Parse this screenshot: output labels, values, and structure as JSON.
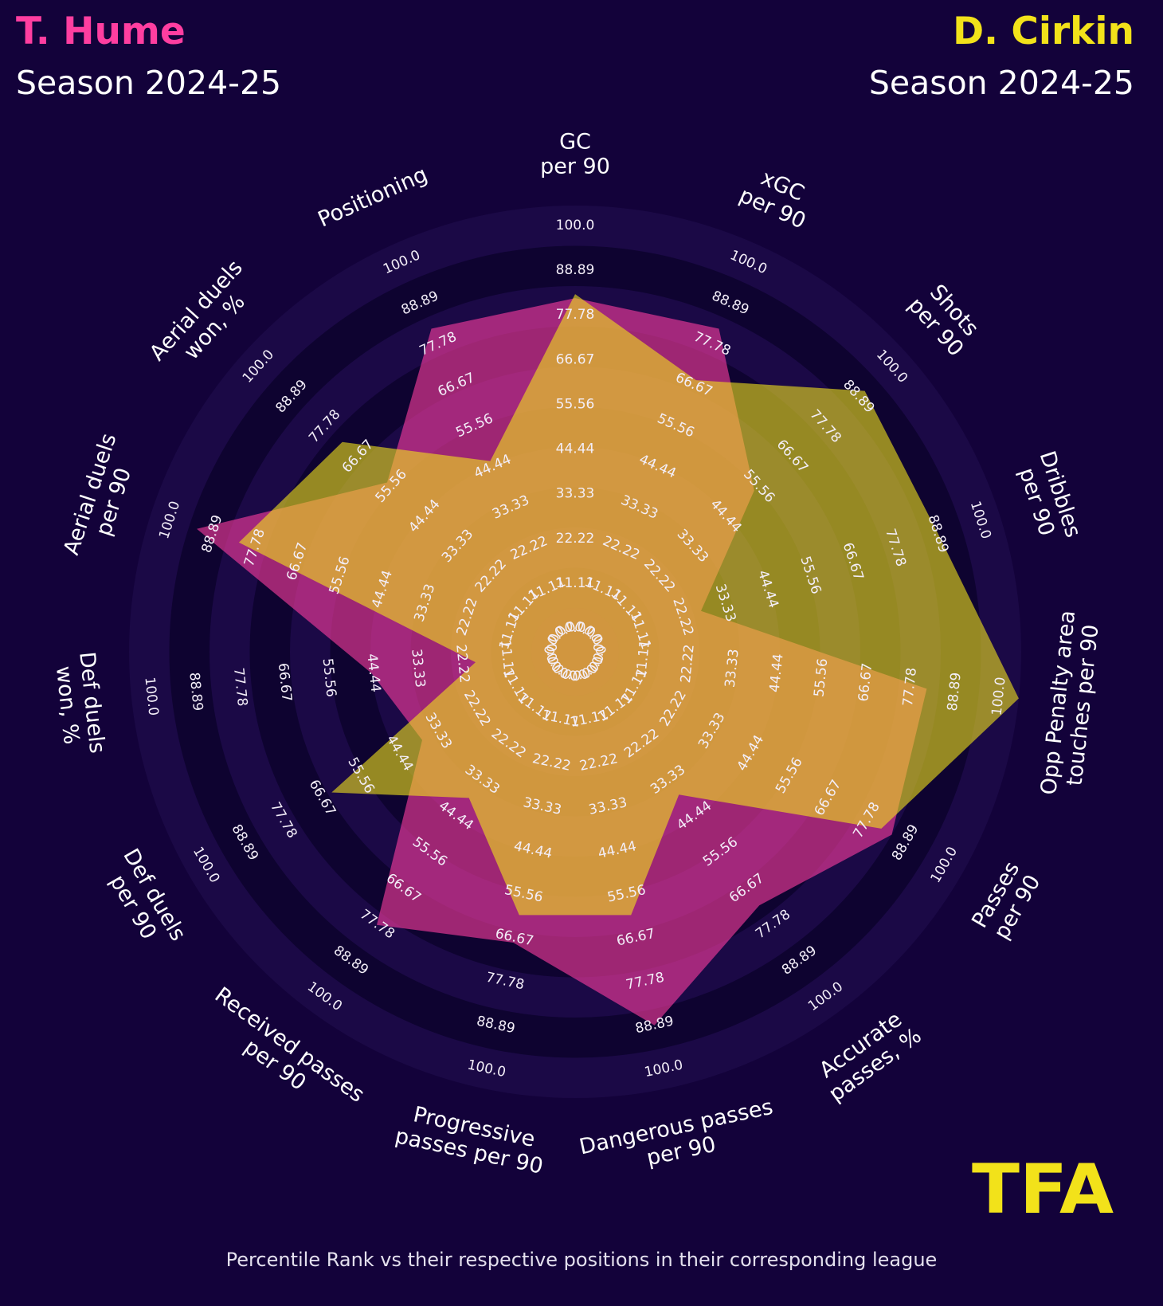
{
  "players": [
    {
      "name": "T. Hume",
      "season": "Season 2024-25"
    },
    {
      "name": "D. Cirkin",
      "season": "Season 2024-25"
    }
  ],
  "footnote": "Percentile Rank vs their respective positions in their corresponding league",
  "logo_text": "TFA",
  "colors": {
    "background": "#13023a",
    "player1": "#ff3ea0",
    "player2": "#f2e21a",
    "ring_dark": "#0e0330",
    "ring_light": "#1b0946"
  },
  "chart_data": {
    "type": "radar",
    "metrics": [
      "GC\nper 90",
      "xGC\nper 90",
      "Shots\nper 90",
      "Dribbles\nper 90",
      "Opp Penalty area\ntouches per 90",
      "Passes\nper 90",
      "Accurate\npasses, %",
      "Dangerous passes\nper 90",
      "Progressive\npasses per 90",
      "Received passes\nper 90",
      "Def duels\nper 90",
      "Def duels\nwon, %",
      "Aerial duels\nper 90",
      "Aerial duels\nwon, %",
      "Positioning"
    ],
    "ring_values": [
      "0.0",
      "11.11",
      "22.22",
      "33.33",
      "44.44",
      "55.56",
      "66.67",
      "77.78",
      "88.89",
      "100.0"
    ],
    "range": [
      0,
      100
    ],
    "series": [
      {
        "name": "T. Hume",
        "values": [
          77,
          77,
          49,
          22,
          77,
          80,
          67,
          84,
          63,
          73,
          33,
          40,
          88,
          52,
          77
        ]
      },
      {
        "name": "D. Cirkin",
        "values": [
          78,
          63,
          86,
          84,
          100,
          77,
          33,
          56,
          56,
          34,
          59,
          14,
          77,
          67,
          41
        ]
      }
    ]
  }
}
